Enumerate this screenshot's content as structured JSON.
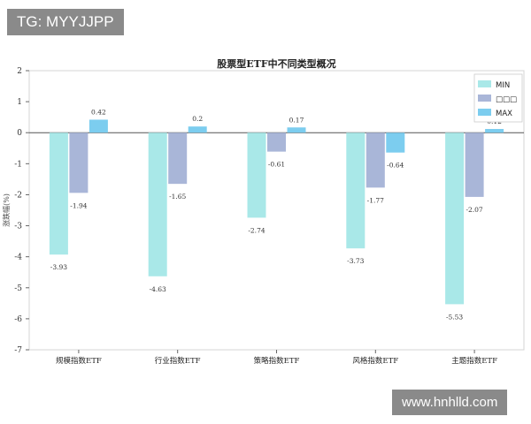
{
  "watermark_top": "TG: MYYJJPP",
  "watermark_bottom": "www.hnhlld.com",
  "chart_data": {
    "type": "bar",
    "title": "股票型ETF中不同类型概况",
    "ylabel": "涨跌幅(%)",
    "xlabel": "",
    "ylim": [
      -7,
      2
    ],
    "yticks": [
      2,
      1,
      0,
      -1,
      -2,
      -3,
      -4,
      -5,
      -6,
      -7
    ],
    "grid": false,
    "legend_position": "top-right",
    "categories": [
      "规模指数ETF",
      "行业指数ETF",
      "策略指数ETF",
      "风格指数ETF",
      "主题指数ETF"
    ],
    "series": [
      {
        "name": "MIN",
        "color": "#a9e8e8",
        "values": [
          -3.93,
          -4.63,
          -2.74,
          -3.73,
          -5.53
        ]
      },
      {
        "name": "□□□",
        "color": "#a9b6d8",
        "values": [
          -1.94,
          -1.65,
          -0.61,
          -1.77,
          -2.07
        ]
      },
      {
        "name": "MAX",
        "color": "#7ccdef",
        "values": [
          0.42,
          0.2,
          0.17,
          -0.64,
          0.12
        ]
      }
    ]
  }
}
